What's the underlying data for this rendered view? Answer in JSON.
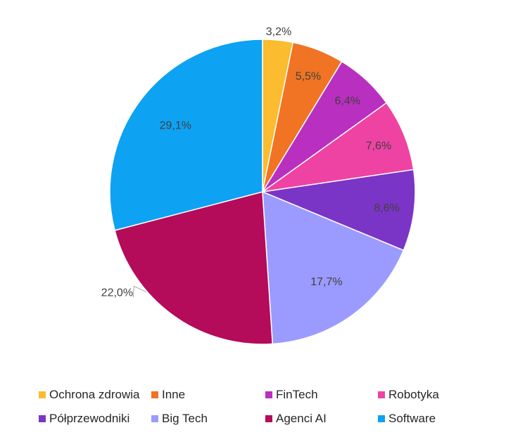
{
  "chart_data": {
    "type": "pie",
    "title": "",
    "start_angle_deg": 0,
    "direction": "clockwise",
    "legend_position": "bottom",
    "slices": [
      {
        "label": "Ochrona zdrowia",
        "value": 3.2,
        "display": "3,2%",
        "color": "#FBBC30"
      },
      {
        "label": "Inne",
        "value": 5.5,
        "display": "5,5%",
        "color": "#F07423"
      },
      {
        "label": "FinTech",
        "value": 6.4,
        "display": "6,4%",
        "color": "#B92FC0"
      },
      {
        "label": "Robotyka",
        "value": 7.6,
        "display": "7,6%",
        "color": "#EE43A3"
      },
      {
        "label": "Półprzewodniki",
        "value": 8.6,
        "display": "8,6%",
        "color": "#7B35C6"
      },
      {
        "label": "Big Tech",
        "value": 17.7,
        "display": "17,7%",
        "color": "#9B9BFF"
      },
      {
        "label": "Agenci AI",
        "value": 22.0,
        "display": "22,0%",
        "color": "#B40B5A"
      },
      {
        "label": "Software",
        "value": 29.1,
        "display": "29,1%",
        "color": "#0EA2F3"
      }
    ]
  }
}
